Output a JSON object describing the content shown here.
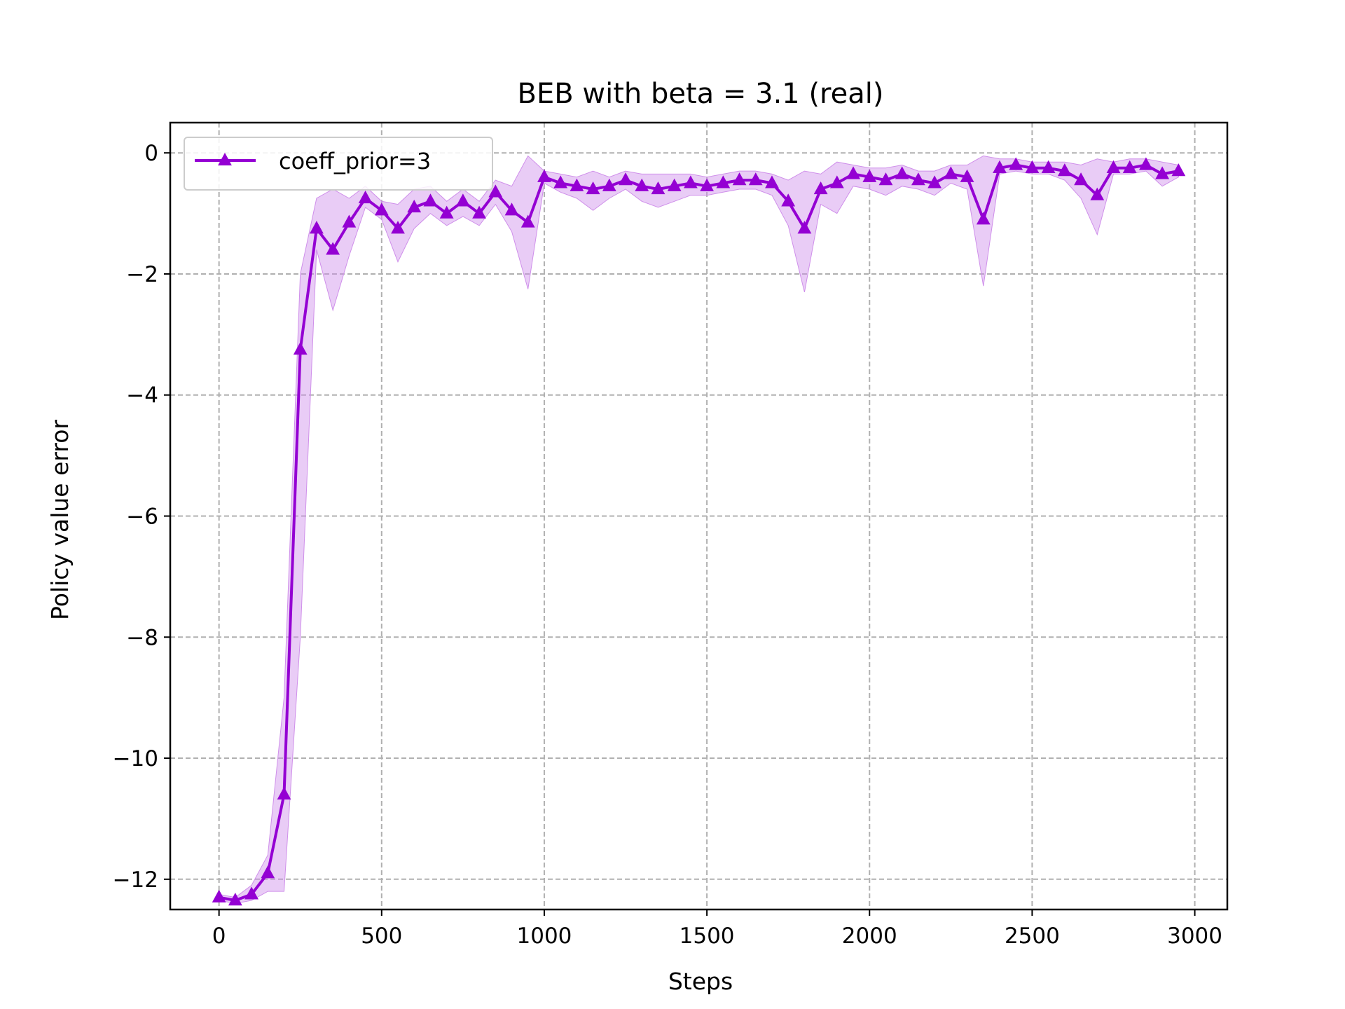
{
  "chart_data": {
    "type": "line",
    "title": "BEB with beta = 3.1 (real)",
    "xlabel": "Steps",
    "ylabel": "Policy value error",
    "xlim": [
      -150,
      3100
    ],
    "ylim": [
      -12.5,
      0.5
    ],
    "xticks": [
      0,
      500,
      1000,
      1500,
      2000,
      2500,
      3000
    ],
    "xtick_labels": [
      "0",
      "500",
      "1000",
      "1500",
      "2000",
      "2500",
      "3000"
    ],
    "yticks": [
      0,
      -2,
      -4,
      -6,
      -8,
      -10,
      -12
    ],
    "ytick_labels": [
      "0",
      "−2",
      "−4",
      "−6",
      "−8",
      "−10",
      "−12"
    ],
    "grid": true,
    "legend_position": "upper-left",
    "series": [
      {
        "name": "coeff_prior=3",
        "color": "#9400D3",
        "band_color": "#CF8FEA",
        "marker": "triangle-up",
        "x": [
          0,
          50,
          100,
          150,
          200,
          250,
          300,
          350,
          400,
          450,
          500,
          550,
          600,
          650,
          700,
          750,
          800,
          850,
          900,
          950,
          1000,
          1050,
          1100,
          1150,
          1200,
          1250,
          1300,
          1350,
          1400,
          1450,
          1500,
          1550,
          1600,
          1650,
          1700,
          1750,
          1800,
          1850,
          1900,
          1950,
          2000,
          2050,
          2100,
          2150,
          2200,
          2250,
          2300,
          2350,
          2400,
          2450,
          2500,
          2550,
          2600,
          2650,
          2700,
          2750,
          2800,
          2850,
          2900,
          2950
        ],
        "y": [
          -12.3,
          -12.35,
          -12.25,
          -11.9,
          -10.6,
          -3.25,
          -1.25,
          -1.6,
          -1.15,
          -0.75,
          -0.95,
          -1.25,
          -0.9,
          -0.8,
          -1.0,
          -0.8,
          -1.0,
          -0.65,
          -0.95,
          -1.15,
          -0.4,
          -0.5,
          -0.55,
          -0.6,
          -0.55,
          -0.45,
          -0.55,
          -0.6,
          -0.55,
          -0.5,
          -0.55,
          -0.5,
          -0.45,
          -0.45,
          -0.5,
          -0.8,
          -1.25,
          -0.6,
          -0.5,
          -0.35,
          -0.4,
          -0.45,
          -0.35,
          -0.45,
          -0.5,
          -0.35,
          -0.4,
          -1.1,
          -0.25,
          -0.2,
          -0.25,
          -0.25,
          -0.3,
          -0.45,
          -0.7,
          -0.25,
          -0.25,
          -0.2,
          -0.35,
          -0.3
        ],
        "lower": [
          -12.35,
          -12.4,
          -12.35,
          -12.2,
          -12.2,
          -8.0,
          -1.6,
          -2.6,
          -1.7,
          -0.9,
          -1.1,
          -1.8,
          -1.25,
          -1.0,
          -1.2,
          -1.05,
          -1.2,
          -0.85,
          -1.3,
          -2.25,
          -0.5,
          -0.65,
          -0.75,
          -0.95,
          -0.75,
          -0.6,
          -0.8,
          -0.9,
          -0.8,
          -0.7,
          -0.7,
          -0.65,
          -0.6,
          -0.6,
          -0.7,
          -1.2,
          -2.3,
          -0.85,
          -1.0,
          -0.55,
          -0.6,
          -0.7,
          -0.55,
          -0.6,
          -0.7,
          -0.5,
          -0.6,
          -2.2,
          -0.35,
          -0.3,
          -0.35,
          -0.35,
          -0.45,
          -0.75,
          -1.35,
          -0.35,
          -0.35,
          -0.3,
          -0.55,
          -0.4
        ],
        "upper": [
          -12.25,
          -12.3,
          -12.1,
          -11.6,
          -9.0,
          -2.0,
          -0.75,
          -0.6,
          -0.75,
          -0.55,
          -0.8,
          -0.85,
          -0.6,
          -0.55,
          -0.8,
          -0.6,
          -0.8,
          -0.45,
          -0.55,
          -0.05,
          -0.3,
          -0.35,
          -0.4,
          -0.3,
          -0.4,
          -0.3,
          -0.35,
          -0.35,
          -0.35,
          -0.35,
          -0.4,
          -0.35,
          -0.3,
          -0.3,
          -0.35,
          -0.45,
          -0.3,
          -0.35,
          -0.15,
          -0.2,
          -0.25,
          -0.25,
          -0.2,
          -0.3,
          -0.3,
          -0.2,
          -0.2,
          -0.05,
          -0.1,
          -0.1,
          -0.15,
          -0.15,
          -0.15,
          -0.2,
          -0.1,
          -0.15,
          -0.1,
          -0.1,
          -0.15,
          -0.2
        ]
      }
    ]
  }
}
